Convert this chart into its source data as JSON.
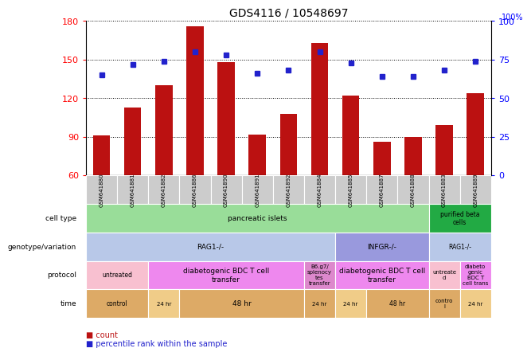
{
  "title": "GDS4116 / 10548697",
  "samples": [
    "GSM641880",
    "GSM641881",
    "GSM641882",
    "GSM641886",
    "GSM641890",
    "GSM641891",
    "GSM641892",
    "GSM641884",
    "GSM641885",
    "GSM641887",
    "GSM641888",
    "GSM641883",
    "GSM641889"
  ],
  "bar_values": [
    91,
    113,
    130,
    176,
    148,
    92,
    108,
    163,
    122,
    86,
    90,
    99,
    124
  ],
  "dot_values": [
    65,
    72,
    74,
    80,
    78,
    66,
    68,
    80,
    73,
    64,
    64,
    68,
    74
  ],
  "ylim_left": [
    60,
    180
  ],
  "ylim_right": [
    0,
    100
  ],
  "yticks_left": [
    60,
    90,
    120,
    150,
    180
  ],
  "yticks_right": [
    0,
    25,
    50,
    75,
    100
  ],
  "bar_color": "#bb1111",
  "dot_color": "#2222cc",
  "cell_type_blocks": [
    {
      "label": "pancreatic islets",
      "start": 0,
      "end": 11,
      "color": "#99dd99"
    },
    {
      "label": "purified beta\ncells",
      "start": 11,
      "end": 13,
      "color": "#22aa44"
    }
  ],
  "genotype_blocks": [
    {
      "label": "RAG1-/-",
      "start": 0,
      "end": 8,
      "color": "#b8c8e8"
    },
    {
      "label": "INFGR-/-",
      "start": 8,
      "end": 11,
      "color": "#9999dd"
    },
    {
      "label": "RAG1-/-",
      "start": 11,
      "end": 13,
      "color": "#b8c8e8"
    }
  ],
  "protocol_blocks": [
    {
      "label": "untreated",
      "start": 0,
      "end": 2,
      "color": "#f8c0d0"
    },
    {
      "label": "diabetogenic BDC T cell\ntransfer",
      "start": 2,
      "end": 7,
      "color": "#ee88ee"
    },
    {
      "label": "B6.g7/\nsplenocy\ntes\ntransfer",
      "start": 7,
      "end": 8,
      "color": "#dd88cc"
    },
    {
      "label": "diabetogenic BDC T cell\ntransfer",
      "start": 8,
      "end": 11,
      "color": "#ee88ee"
    },
    {
      "label": "untreate\nd",
      "start": 11,
      "end": 12,
      "color": "#f8c0d0"
    },
    {
      "label": "diabeto\ngenic\nBDC T\ncell trans",
      "start": 12,
      "end": 13,
      "color": "#ee88ee"
    }
  ],
  "time_blocks": [
    {
      "label": "control",
      "start": 0,
      "end": 2,
      "color": "#ddaa66"
    },
    {
      "label": "24 hr",
      "start": 2,
      "end": 3,
      "color": "#f0cc88"
    },
    {
      "label": "48 hr",
      "start": 3,
      "end": 7,
      "color": "#ddaa66"
    },
    {
      "label": "24 hr",
      "start": 7,
      "end": 8,
      "color": "#ddaa66"
    },
    {
      "label": "24 hr",
      "start": 8,
      "end": 9,
      "color": "#f0cc88"
    },
    {
      "label": "48 hr",
      "start": 9,
      "end": 11,
      "color": "#ddaa66"
    },
    {
      "label": "contro\nl",
      "start": 11,
      "end": 12,
      "color": "#ddaa66"
    },
    {
      "label": "24 hr",
      "start": 12,
      "end": 13,
      "color": "#f0cc88"
    }
  ],
  "row_order": [
    "cell type",
    "genotype/variation",
    "protocol",
    "time"
  ],
  "legend_count_color": "#bb1111",
  "legend_dot_color": "#2222cc",
  "xticklabel_bg": "#cccccc"
}
